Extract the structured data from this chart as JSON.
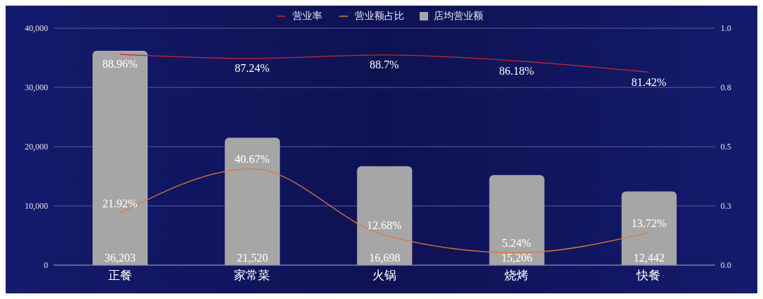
{
  "chart_data": {
    "type": "bar",
    "categories": [
      "正餐",
      "家常菜",
      "火锅",
      "烧烤",
      "快餐"
    ],
    "series": [
      {
        "name": "营业率",
        "type": "line",
        "axis": "y2",
        "color": "#c8262e",
        "values": [
          0.8896,
          0.8724,
          0.887,
          0.8618,
          0.8142
        ],
        "value_labels": [
          "88.96%",
          "87.24%",
          "88.7%",
          "86.18%",
          "81.42%"
        ]
      },
      {
        "name": "营业额占比",
        "type": "line",
        "axis": "y2",
        "color": "#e0793a",
        "values": [
          0.2192,
          0.4067,
          0.1268,
          0.0524,
          0.1372
        ],
        "value_labels": [
          "21.92%",
          "40.67%",
          "12.68%",
          "5.24%",
          "13.72%"
        ]
      },
      {
        "name": "店均营业额",
        "color": "#a6a6a6",
        "values": [
          36203,
          21520,
          16698,
          15206,
          12442
        ],
        "value_labels": [
          "36,203",
          "21,520",
          "16,698",
          "15,206",
          "12,442"
        ]
      }
    ],
    "ylim": [
      0,
      40000
    ],
    "yticks": [
      {
        "value": 0,
        "label": "0"
      },
      {
        "value": 10000,
        "label": "10,000"
      },
      {
        "value": 20000,
        "label": "20,000"
      },
      {
        "value": 30000,
        "label": "30,000"
      },
      {
        "value": 40000,
        "label": "40,000"
      }
    ],
    "y2lim": [
      0,
      1
    ],
    "y2ticks": [
      {
        "value": 0,
        "label": "0.0"
      },
      {
        "value": 0.25,
        "label": "0.3"
      },
      0.5,
      {
        "value": 0.75,
        "label": "0.8"
      },
      {
        "value": 1,
        "label": "1.0"
      }
    ],
    "grid": "y",
    "legend": "top",
    "marker": "none"
  }
}
